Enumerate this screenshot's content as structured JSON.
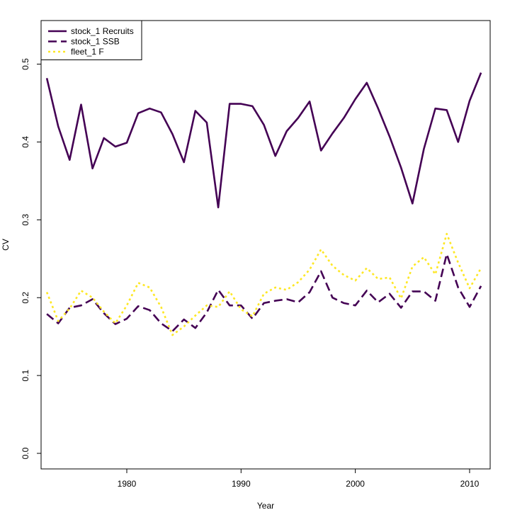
{
  "chart_data": {
    "type": "line",
    "title": "",
    "xlabel": "Year",
    "ylabel": "CV",
    "xlim": [
      1972.5,
      2011.8
    ],
    "ylim": [
      -0.02,
      0.556
    ],
    "x_ticks": [
      1980,
      1990,
      2000,
      2010
    ],
    "y_ticks": [
      0.0,
      0.1,
      0.2,
      0.3,
      0.4,
      0.5
    ],
    "y_tick_labels": [
      "0.0",
      "0.1",
      "0.2",
      "0.3",
      "0.4",
      "0.5"
    ],
    "legend_position": "top-left",
    "x": [
      1973,
      1974,
      1975,
      1976,
      1977,
      1978,
      1979,
      1980,
      1981,
      1982,
      1983,
      1984,
      1985,
      1986,
      1987,
      1988,
      1989,
      1990,
      1991,
      1992,
      1993,
      1994,
      1995,
      1996,
      1997,
      1998,
      1999,
      2000,
      2001,
      2002,
      2003,
      2004,
      2005,
      2006,
      2007,
      2008,
      2009,
      2010,
      2011
    ],
    "series": [
      {
        "name": "stock_1 Recruits",
        "color": "#440154",
        "dash": "solid",
        "values": [
          0.482,
          0.42,
          0.377,
          0.448,
          0.366,
          0.405,
          0.394,
          0.399,
          0.437,
          0.443,
          0.438,
          0.41,
          0.374,
          0.44,
          0.425,
          0.316,
          0.449,
          0.449,
          0.446,
          0.422,
          0.382,
          0.414,
          0.431,
          0.452,
          0.389,
          0.411,
          0.431,
          0.455,
          0.476,
          0.443,
          0.407,
          0.367,
          0.321,
          0.391,
          0.443,
          0.441,
          0.4,
          0.453,
          0.489
        ]
      },
      {
        "name": "stock_1 SSB",
        "color": "#440154",
        "dash": "dashed",
        "values": [
          0.179,
          0.167,
          0.187,
          0.19,
          0.198,
          0.18,
          0.166,
          0.173,
          0.189,
          0.184,
          0.167,
          0.157,
          0.172,
          0.161,
          0.181,
          0.21,
          0.19,
          0.19,
          0.173,
          0.193,
          0.196,
          0.198,
          0.194,
          0.207,
          0.234,
          0.2,
          0.193,
          0.19,
          0.209,
          0.194,
          0.205,
          0.187,
          0.208,
          0.208,
          0.196,
          0.256,
          0.213,
          0.188,
          0.215
        ]
      },
      {
        "name": "fleet_1 F",
        "color": "#FDE725",
        "dash": "dotted",
        "values": [
          0.207,
          0.17,
          0.186,
          0.209,
          0.2,
          0.182,
          0.167,
          0.19,
          0.219,
          0.213,
          0.188,
          0.152,
          0.163,
          0.177,
          0.19,
          0.188,
          0.208,
          0.185,
          0.176,
          0.205,
          0.213,
          0.21,
          0.22,
          0.236,
          0.262,
          0.241,
          0.229,
          0.222,
          0.238,
          0.224,
          0.226,
          0.199,
          0.24,
          0.252,
          0.23,
          0.282,
          0.245,
          0.212,
          0.238
        ]
      }
    ]
  }
}
